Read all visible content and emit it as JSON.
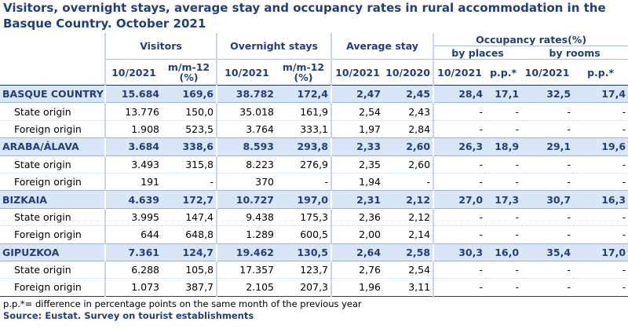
{
  "title": "Visitors, overnight stays, average stay and occupancy rates in rural accommodation in the Basque Country.  October 2021",
  "headers": {
    "visitors": "Visitors",
    "overnight_stays": "Overnight stays",
    "average_stay": "Average stay",
    "occupancy": "Occupancy rates(%)",
    "by_places": "by places",
    "by_rooms": "by rooms",
    "col_10_2021": "10/2021",
    "col_10_2020": "10/2020",
    "col_mm12": "m/m-12",
    "col_mm12_pct": "(%)",
    "col_pp": "p.p.*"
  },
  "rows": [
    {
      "type": "region",
      "label": "BASQUE COUNTRY",
      "v": "15.684",
      "v_mm": "169,6",
      "o": "38.782",
      "o_mm": "172,4",
      "a21": "2,47",
      "a20": "2,45",
      "p": "28,4",
      "p_pp": "17,1",
      "r": "32,5",
      "r_pp": "17,4"
    },
    {
      "type": "sub",
      "label": "State origin",
      "v": "13.776",
      "v_mm": "150,0",
      "o": "35.018",
      "o_mm": "161,9",
      "a21": "2,54",
      "a20": "2,43",
      "p": "-",
      "p_pp": "-",
      "r": "-",
      "r_pp": "-"
    },
    {
      "type": "sub",
      "label": "Foreign origin",
      "v": "1.908",
      "v_mm": "523,5",
      "o": "3.764",
      "o_mm": "333,1",
      "a21": "1,97",
      "a20": "2,84",
      "p": "-",
      "p_pp": "-",
      "r": "-",
      "r_pp": "-"
    },
    {
      "type": "region",
      "label": "ARABA/ÁLAVA",
      "v": "3.684",
      "v_mm": "338,6",
      "o": "8.593",
      "o_mm": "293,8",
      "a21": "2,33",
      "a20": "2,60",
      "p": "26,3",
      "p_pp": "18,9",
      "r": "29,1",
      "r_pp": "19,6"
    },
    {
      "type": "sub",
      "label": "State origin",
      "v": "3.493",
      "v_mm": "315,8",
      "o": "8.223",
      "o_mm": "276,9",
      "a21": "2,35",
      "a20": "2,60",
      "p": "-",
      "p_pp": "-",
      "r": "-",
      "r_pp": "-"
    },
    {
      "type": "sub",
      "label": "Foreign origin",
      "v": "191",
      "v_mm": "-",
      "o": "370",
      "o_mm": "-",
      "a21": "1,94",
      "a20": "-",
      "p": "-",
      "p_pp": "-",
      "r": "-",
      "r_pp": "-"
    },
    {
      "type": "region",
      "label": "BIZKAIA",
      "v": "4.639",
      "v_mm": "172,7",
      "o": "10.727",
      "o_mm": "197,0",
      "a21": "2,31",
      "a20": "2,12",
      "p": "27,0",
      "p_pp": "17,3",
      "r": "30,7",
      "r_pp": "16,3"
    },
    {
      "type": "sub",
      "label": "State origin",
      "v": "3.995",
      "v_mm": "147,4",
      "o": "9.438",
      "o_mm": "175,3",
      "a21": "2,36",
      "a20": "2,12",
      "p": "-",
      "p_pp": "-",
      "r": "-",
      "r_pp": "-"
    },
    {
      "type": "sub",
      "label": "Foreign origin",
      "v": "644",
      "v_mm": "648,8",
      "o": "1.289",
      "o_mm": "600,5",
      "a21": "2,00",
      "a20": "2,14",
      "p": "-",
      "p_pp": "-",
      "r": "-",
      "r_pp": "-"
    },
    {
      "type": "region",
      "label": "GIPUZKOA",
      "v": "7.361",
      "v_mm": "124,7",
      "o": "19.462",
      "o_mm": "130,5",
      "a21": "2,64",
      "a20": "2,58",
      "p": "30,3",
      "p_pp": "16,0",
      "r": "35,4",
      "r_pp": "17,0"
    },
    {
      "type": "sub",
      "label": "State origin",
      "v": "6.288",
      "v_mm": "105,8",
      "o": "17.357",
      "o_mm": "123,7",
      "a21": "2,76",
      "a20": "2,54",
      "p": "-",
      "p_pp": "-",
      "r": "-",
      "r_pp": "-"
    },
    {
      "type": "sub",
      "label": "Foreign origin",
      "v": "1.073",
      "v_mm": "387,7",
      "o": "2.105",
      "o_mm": "207,3",
      "a21": "1,96",
      "a20": "3,11",
      "p": "-",
      "p_pp": "-",
      "r": "-",
      "r_pp": "-"
    }
  ],
  "footnote": "p.p.*= difference in percentage points on the same month of the previous year",
  "source": "Source: Eustat. Survey on tourist establishments",
  "colors": {
    "title": "#1f3f7f",
    "region_bg": "#d9e6f7"
  }
}
